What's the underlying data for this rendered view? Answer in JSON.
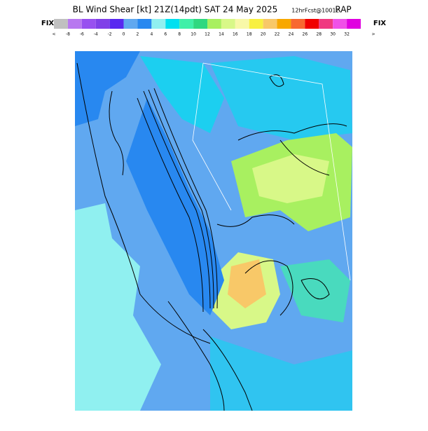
{
  "header": {
    "title": "BL Wind Shear [kt] 21Z(14pdt) SAT 24 May 2025",
    "forecast": "12hrFcst@1001z",
    "model": "RAP"
  },
  "colorbar": {
    "left_label": "FIX",
    "right_label": "FIX",
    "low_end": "<",
    "high_end": ">",
    "colors": [
      "#c0c0c0",
      "#b878f0",
      "#9850f0",
      "#8040e8",
      "#5828f0",
      "#60a8f0",
      "#2888f0",
      "#90f0f0",
      "#00e0f0",
      "#40f0a8",
      "#30d880",
      "#a8f060",
      "#d8f888",
      "#f8f8a8",
      "#f8f040",
      "#f8c868",
      "#f8a800",
      "#f86830",
      "#f00000",
      "#f03880",
      "#f050e8",
      "#e000e0"
    ],
    "labels": [
      "-8",
      "-6",
      "-4",
      "-2",
      "0",
      "2",
      "4",
      "6",
      "8",
      "10",
      "12",
      "14",
      "16",
      "18",
      "20",
      "22",
      "24",
      "26",
      "28",
      "30",
      "32"
    ]
  }
}
